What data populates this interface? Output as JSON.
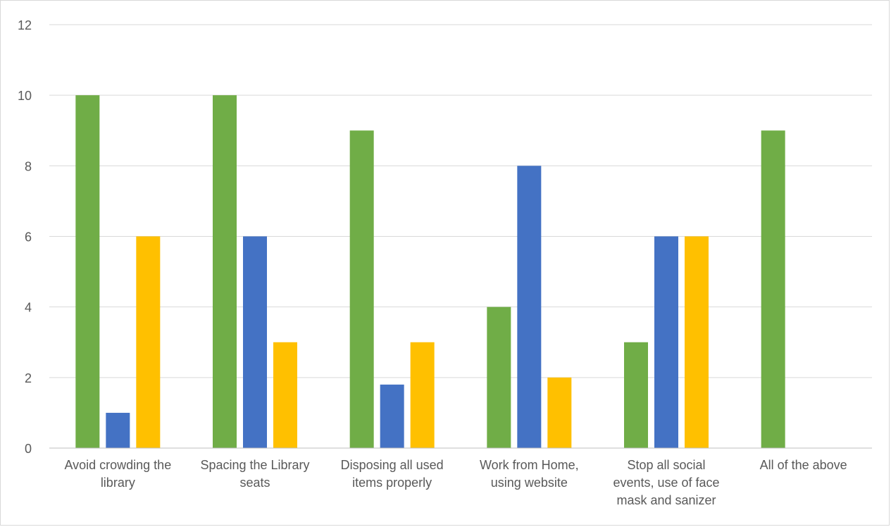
{
  "chart_data": {
    "type": "bar",
    "title": "",
    "xlabel": "",
    "ylabel": "",
    "ylim": [
      0,
      12
    ],
    "yticks": [
      0,
      2,
      4,
      6,
      8,
      10,
      12
    ],
    "grid": true,
    "legend": "none",
    "categories": [
      [
        "Avoid crowding the",
        "library"
      ],
      [
        "Spacing the Library",
        "seats"
      ],
      [
        "Disposing all used",
        "items properly"
      ],
      [
        "Work from Home,",
        "using website"
      ],
      [
        "Stop all social",
        "events, use of face",
        "mask and sanizer"
      ],
      [
        "All of the above"
      ]
    ],
    "series": [
      {
        "color": "#70ad47",
        "values": [
          10,
          10,
          9,
          4,
          3,
          9
        ]
      },
      {
        "color": "#4472c4",
        "values": [
          1,
          6,
          1.8,
          8,
          6,
          0
        ]
      },
      {
        "color": "#ffc000",
        "values": [
          6,
          3,
          3,
          2,
          6,
          0
        ]
      }
    ]
  }
}
